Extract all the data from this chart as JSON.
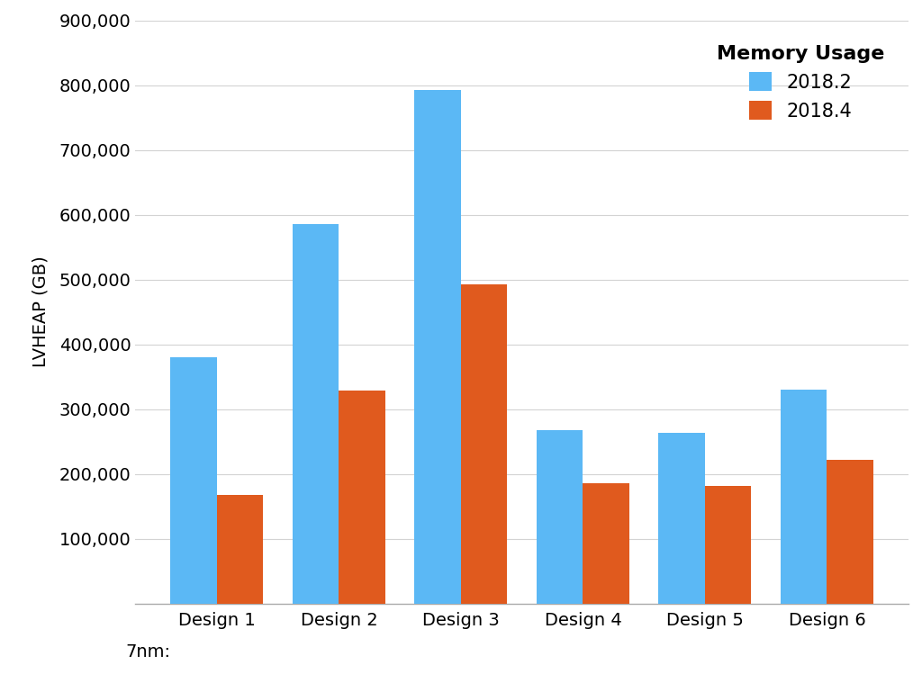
{
  "categories": [
    "Design 1",
    "Design 2",
    "Design 3",
    "Design 4",
    "Design 5",
    "Design 6"
  ],
  "prefix_label": "7nm:",
  "series": {
    "2018.2": [
      380000,
      585000,
      793000,
      268000,
      263000,
      330000
    ],
    "2018.4": [
      168000,
      328000,
      493000,
      185000,
      182000,
      222000
    ]
  },
  "bar_colors": {
    "2018.2": "#5BB8F5",
    "2018.4": "#E05A1E"
  },
  "legend_title": "Memory Usage",
  "ylabel": "LVHEAP (GB)",
  "ylim": [
    0,
    900000
  ],
  "yticks": [
    100000,
    200000,
    300000,
    400000,
    500000,
    600000,
    700000,
    800000,
    900000
  ],
  "grid_color": "#D3D3D3",
  "background_color": "#FFFFFF",
  "bar_width": 0.38,
  "legend_fontsize": 15,
  "legend_title_fontsize": 16,
  "axis_label_fontsize": 14,
  "tick_fontsize": 14
}
